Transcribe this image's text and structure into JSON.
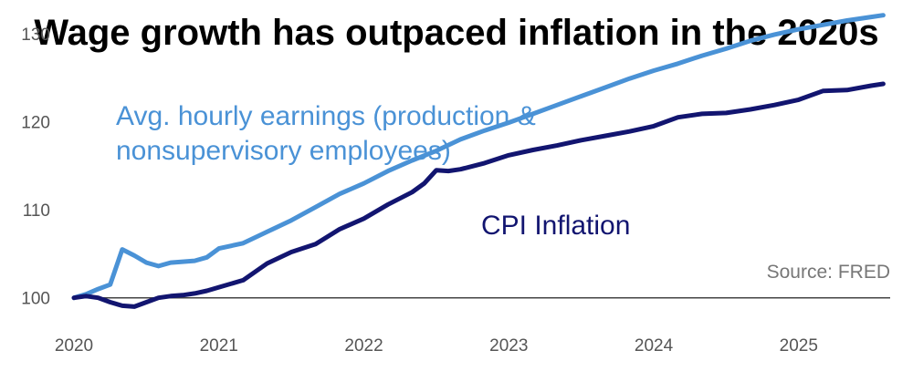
{
  "title": "Wage growth has outpaced inflation in the 2020s",
  "source": "Source: FRED",
  "colors": {
    "earnings": "#4a92d6",
    "cpi": "#121570",
    "baseline": "#444444"
  },
  "chart_data": {
    "type": "line",
    "title": "Wage growth has outpaced inflation in the 2020s",
    "xlabel": "",
    "ylabel": "",
    "x_ticks": [
      "2020",
      "2021",
      "2022",
      "2023",
      "2024",
      "2025"
    ],
    "y_ticks": [
      100,
      110,
      120,
      130
    ],
    "xlim": [
      2020.0,
      2025.65
    ],
    "ylim": [
      95,
      133
    ],
    "reference_line": 100,
    "grid": false,
    "series": [
      {
        "name": "Avg. hourly earnings (production & nonsupervisory employees)",
        "color": "#4a92d6",
        "x": [
          2020.0,
          2020.083,
          2020.167,
          2020.25,
          2020.333,
          2020.417,
          2020.5,
          2020.583,
          2020.667,
          2020.75,
          2020.833,
          2020.917,
          2021.0,
          2021.167,
          2021.333,
          2021.5,
          2021.667,
          2021.833,
          2022.0,
          2022.167,
          2022.333,
          2022.5,
          2022.667,
          2022.833,
          2023.0,
          2023.167,
          2023.333,
          2023.5,
          2023.667,
          2023.833,
          2024.0,
          2024.167,
          2024.333,
          2024.5,
          2024.667,
          2024.833,
          2025.0,
          2025.167,
          2025.333,
          2025.5,
          2025.583
        ],
        "y": [
          100,
          100.4,
          101.0,
          101.5,
          105.5,
          104.8,
          104.0,
          103.6,
          104.0,
          104.1,
          104.2,
          104.6,
          105.6,
          106.2,
          107.5,
          108.8,
          110.3,
          111.8,
          113.0,
          114.4,
          115.6,
          116.7,
          118.0,
          119.0,
          119.9,
          120.9,
          121.9,
          122.9,
          123.9,
          124.9,
          125.8,
          126.6,
          127.5,
          128.3,
          129.2,
          129.9,
          130.5,
          131.0,
          131.5,
          131.9,
          132.1
        ]
      },
      {
        "name": "CPI Inflation",
        "color": "#121570",
        "x": [
          2020.0,
          2020.083,
          2020.167,
          2020.25,
          2020.333,
          2020.417,
          2020.5,
          2020.583,
          2020.667,
          2020.75,
          2020.833,
          2020.917,
          2021.0,
          2021.167,
          2021.333,
          2021.5,
          2021.667,
          2021.833,
          2022.0,
          2022.167,
          2022.333,
          2022.417,
          2022.5,
          2022.583,
          2022.667,
          2022.833,
          2023.0,
          2023.167,
          2023.333,
          2023.5,
          2023.667,
          2023.833,
          2024.0,
          2024.167,
          2024.333,
          2024.5,
          2024.667,
          2024.833,
          2025.0,
          2025.167,
          2025.333,
          2025.5,
          2025.583
        ],
        "y": [
          100,
          100.2,
          100.0,
          99.5,
          99.1,
          99.0,
          99.5,
          100.0,
          100.2,
          100.3,
          100.5,
          100.8,
          101.2,
          102.0,
          103.9,
          105.2,
          106.1,
          107.8,
          109.0,
          110.6,
          112.0,
          113.0,
          114.5,
          114.4,
          114.6,
          115.3,
          116.2,
          116.8,
          117.3,
          117.9,
          118.4,
          118.9,
          119.5,
          120.5,
          120.9,
          121.0,
          121.4,
          121.9,
          122.5,
          123.5,
          123.6,
          124.1,
          124.3
        ]
      }
    ],
    "annotations": [
      {
        "text": "Avg. hourly earnings (production &",
        "series": 0
      },
      {
        "text": "nonsupervisory employees)",
        "series": 0
      },
      {
        "text": "CPI Inflation",
        "series": 1
      }
    ]
  }
}
